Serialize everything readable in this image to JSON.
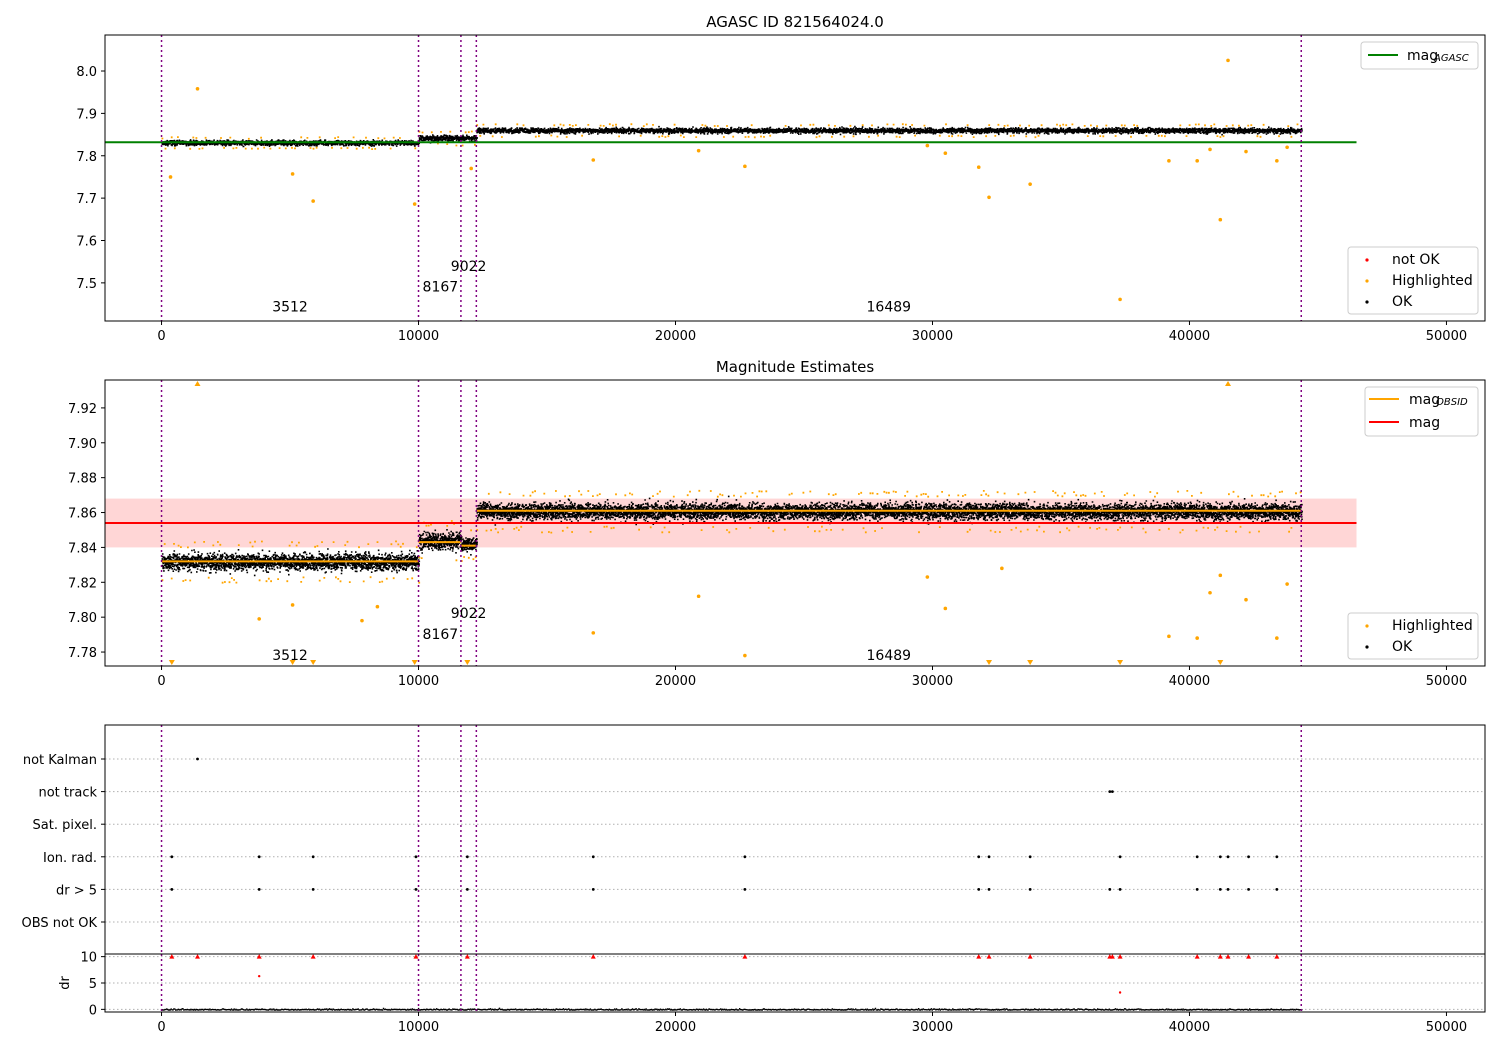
{
  "figure": {
    "colors": {
      "ok": "#000000",
      "highlighted": "#ffa500",
      "not_ok": "#ff0000",
      "mag_agasc_line": "#008000",
      "mag_line": "#ff0000",
      "mag_obsid_line": "#ffa500",
      "mag_band": "#ffd6d6",
      "obsid_divider": "#800080",
      "grid": "#b0b0b0"
    }
  },
  "chart_data": [
    {
      "type": "scatter",
      "title": "AGASC ID 821564024.0",
      "xlabel": "",
      "ylabel": "",
      "xlim": [
        -2200,
        51500
      ],
      "ylim": [
        7.41,
        8.085
      ],
      "xticks": [
        0,
        10000,
        20000,
        30000,
        40000,
        50000
      ],
      "yticks": [
        7.5,
        7.6,
        7.7,
        7.8,
        7.9,
        8.0
      ],
      "ytick_labels": [
        "7.5",
        "7.6",
        "7.7",
        "7.8",
        "7.9",
        "8.0"
      ],
      "grid": false,
      "hlines": [
        {
          "name": "mag",
          "sub": "AGASC",
          "y": 7.832,
          "x_range": [
            -2200,
            46500
          ],
          "color": "#008000"
        }
      ],
      "obsid_boundaries": [
        0,
        10000,
        11650,
        12250,
        44350
      ],
      "obsid_labels": [
        {
          "text": "3512",
          "x": 5000,
          "y": 7.432
        },
        {
          "text": "8167",
          "x": 10850,
          "y": 7.48
        },
        {
          "text": "9022",
          "x": 11950,
          "y": 7.528
        },
        {
          "text": "16489",
          "x": 28300,
          "y": 7.432
        }
      ],
      "segments": [
        {
          "x": [
            0,
            10000
          ],
          "y_center": 7.832,
          "spread": 0.012
        },
        {
          "x": [
            10000,
            12250
          ],
          "y_center": 7.843,
          "spread": 0.014
        },
        {
          "x": [
            12250,
            44350
          ],
          "y_center": 7.861,
          "spread": 0.013
        }
      ],
      "highlighted_outliers": [
        {
          "x": 1400,
          "y": 7.958
        },
        {
          "x": 350,
          "y": 7.75
        },
        {
          "x": 5100,
          "y": 7.757
        },
        {
          "x": 5900,
          "y": 7.693
        },
        {
          "x": 9850,
          "y": 7.686
        },
        {
          "x": 12050,
          "y": 7.77
        },
        {
          "x": 16800,
          "y": 7.79
        },
        {
          "x": 20900,
          "y": 7.812
        },
        {
          "x": 22700,
          "y": 7.775
        },
        {
          "x": 29800,
          "y": 7.824
        },
        {
          "x": 30500,
          "y": 7.806
        },
        {
          "x": 31800,
          "y": 7.773
        },
        {
          "x": 32200,
          "y": 7.702
        },
        {
          "x": 33800,
          "y": 7.733
        },
        {
          "x": 37300,
          "y": 7.461
        },
        {
          "x": 39200,
          "y": 7.788
        },
        {
          "x": 40300,
          "y": 7.788
        },
        {
          "x": 40800,
          "y": 7.815
        },
        {
          "x": 41200,
          "y": 7.649
        },
        {
          "x": 41500,
          "y": 8.025
        },
        {
          "x": 42200,
          "y": 7.81
        },
        {
          "x": 43400,
          "y": 7.788
        },
        {
          "x": 43800,
          "y": 7.82
        }
      ],
      "legend_top": {
        "position": "upper right",
        "entries": [
          {
            "label": "mag",
            "sub": "AGASC"
          }
        ]
      },
      "legend_bottom": {
        "position": "lower right",
        "entries": [
          "not OK",
          "Highlighted",
          "OK"
        ]
      }
    },
    {
      "type": "scatter",
      "title": "Magnitude Estimates",
      "xlabel": "",
      "ylabel": "",
      "xlim": [
        -2200,
        51500
      ],
      "ylim": [
        7.772,
        7.936
      ],
      "xticks": [
        0,
        10000,
        20000,
        30000,
        40000,
        50000
      ],
      "yticks": [
        7.78,
        7.8,
        7.82,
        7.84,
        7.86,
        7.88,
        7.9,
        7.92
      ],
      "ytick_labels": [
        "7.78",
        "7.80",
        "7.82",
        "7.84",
        "7.86",
        "7.88",
        "7.90",
        "7.92"
      ],
      "grid": false,
      "mag": {
        "y": 7.854,
        "band": [
          7.84,
          7.868
        ],
        "x_range": [
          -2200,
          46500
        ]
      },
      "mag_obsid": [
        {
          "x": [
            0,
            10000
          ],
          "y": 7.832
        },
        {
          "x": [
            10000,
            11650
          ],
          "y": 7.843
        },
        {
          "x": [
            11650,
            12250
          ],
          "y": 7.841
        },
        {
          "x": [
            12250,
            44350
          ],
          "y": 7.861
        }
      ],
      "obsid_boundaries": [
        0,
        10000,
        11650,
        12250,
        44350
      ],
      "obsid_labels": [
        {
          "text": "3512",
          "x": 5000,
          "y": 7.7755
        },
        {
          "text": "8167",
          "x": 10850,
          "y": 7.7875
        },
        {
          "text": "9022",
          "x": 11950,
          "y": 7.7995
        },
        {
          "text": "16489",
          "x": 28300,
          "y": 7.7755
        }
      ],
      "segments": [
        {
          "x": [
            0,
            10000
          ],
          "y_center": 7.832,
          "spread": 0.01
        },
        {
          "x": [
            10000,
            11650
          ],
          "y_center": 7.844,
          "spread": 0.01
        },
        {
          "x": [
            11650,
            12250
          ],
          "y_center": 7.842,
          "spread": 0.008
        },
        {
          "x": [
            12250,
            44350
          ],
          "y_center": 7.861,
          "spread": 0.01
        }
      ],
      "highlighted_outliers": [
        {
          "x": 3800,
          "y": 7.799
        },
        {
          "x": 5100,
          "y": 7.807
        },
        {
          "x": 7800,
          "y": 7.798
        },
        {
          "x": 8400,
          "y": 7.806
        },
        {
          "x": 16800,
          "y": 7.791
        },
        {
          "x": 20900,
          "y": 7.812
        },
        {
          "x": 22700,
          "y": 7.778
        },
        {
          "x": 29800,
          "y": 7.823
        },
        {
          "x": 30500,
          "y": 7.805
        },
        {
          "x": 32700,
          "y": 7.828
        },
        {
          "x": 40300,
          "y": 7.788
        },
        {
          "x": 40800,
          "y": 7.814
        },
        {
          "x": 41200,
          "y": 7.824
        },
        {
          "x": 42200,
          "y": 7.81
        },
        {
          "x": 43400,
          "y": 7.788
        },
        {
          "x": 43800,
          "y": 7.819
        },
        {
          "x": 39200,
          "y": 7.789
        }
      ],
      "clipped_high": [
        1400,
        41500
      ],
      "clipped_low": [
        400,
        5100,
        5900,
        9850,
        11900,
        32200,
        33800,
        37300,
        41200
      ],
      "legend_top": {
        "position": "upper right",
        "entries": [
          {
            "label": "mag",
            "sub": "OBSID"
          },
          {
            "label": "mag"
          }
        ]
      },
      "legend_bottom": {
        "position": "lower right",
        "entries": [
          "Highlighted",
          "OK"
        ]
      }
    },
    {
      "type": "scatter",
      "title": "",
      "xlim": [
        -2200,
        51500
      ],
      "categories": [
        "not Kalman",
        "not track",
        "Sat. pixel.",
        "Ion. rad.",
        "dr > 5",
        "OBS not OK"
      ],
      "flags": {
        "not Kalman": [
          1400
        ],
        "not track": [
          36900,
          37000
        ],
        "Sat. pixel.": [],
        "Ion. rad.": [
          400,
          3800,
          5900,
          9900,
          11900,
          16800,
          22700,
          31800,
          32200,
          33800,
          37300,
          40300,
          41200,
          41500,
          42300,
          43400
        ],
        "dr > 5": [
          400,
          3800,
          5900,
          9900,
          11900,
          16800,
          22700,
          31800,
          32200,
          33800,
          36900,
          37300,
          40300,
          41200,
          41500,
          42300,
          43400
        ],
        "OBS not OK": []
      },
      "grid": true
    },
    {
      "type": "scatter",
      "title": "",
      "xlabel": "",
      "ylabel": "dr",
      "xlim": [
        -2200,
        51500
      ],
      "ylim": [
        -0.5,
        10.5
      ],
      "xticks": [
        0,
        10000,
        20000,
        30000,
        40000,
        50000
      ],
      "yticks": [
        0,
        5,
        10
      ],
      "grid": true,
      "clipped_high": [
        400,
        1400,
        3800,
        5900,
        9900,
        11900,
        16800,
        22700,
        31800,
        32200,
        33800,
        36900,
        37000,
        37300,
        40300,
        41200,
        41500,
        42300,
        43400
      ],
      "red_points": [
        {
          "x": 3800,
          "y": 6.3
        },
        {
          "x": 37300,
          "y": 3.2
        }
      ],
      "baseline_x": [
        0,
        44350
      ],
      "baseline_spread": 0.5
    }
  ]
}
